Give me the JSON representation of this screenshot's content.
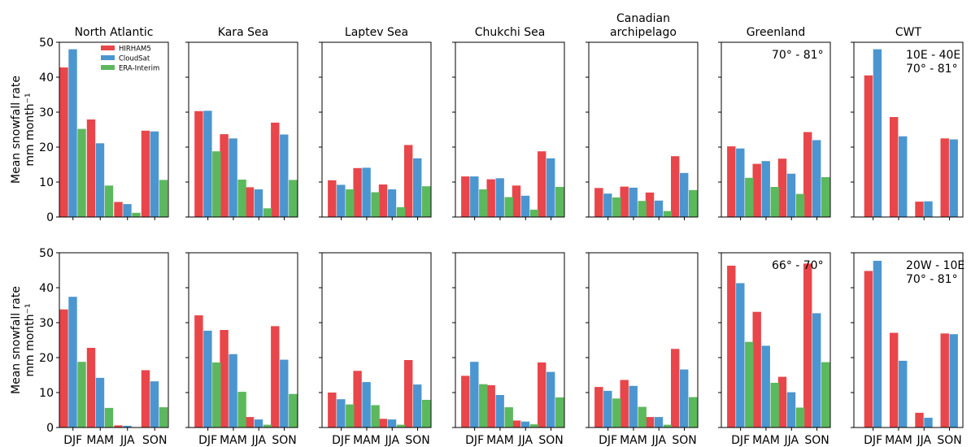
{
  "colors": {
    "HIRHAM5": "#e8464a",
    "CloudSat": "#4b96d0",
    "ERA-Interim": "#5cb85c"
  },
  "ylabel_lines": [
    "Mean snowfall rate",
    "mm month⁻¹"
  ],
  "chart_data": {
    "type": "bar",
    "categories": [
      "DJF",
      "MAM",
      "JJA",
      "SON"
    ],
    "ylim": [
      0,
      50
    ],
    "yticks": [
      0,
      10,
      20,
      30,
      40,
      50
    ],
    "legend": {
      "placement": "top-right of first panel",
      "entries": [
        "HIRHAM5",
        "CloudSat",
        "ERA-Interim"
      ]
    },
    "rows": [
      {
        "panels": [
          {
            "title": [
              "North Atlantic"
            ],
            "annotation": [],
            "series": [
              {
                "name": "HIRHAM5",
                "values": [
                  42.8,
                  27.9,
                  4.3,
                  24.7
                ]
              },
              {
                "name": "CloudSat",
                "values": [
                  48.0,
                  21.1,
                  3.7,
                  24.5
                ]
              },
              {
                "name": "ERA-Interim",
                "values": [
                  25.2,
                  9.0,
                  1.2,
                  10.6
                ]
              }
            ]
          },
          {
            "title": [
              "Kara Sea"
            ],
            "annotation": [],
            "series": [
              {
                "name": "HIRHAM5",
                "values": [
                  30.3,
                  23.7,
                  8.5,
                  27.0
                ]
              },
              {
                "name": "CloudSat",
                "values": [
                  30.4,
                  22.5,
                  7.9,
                  23.6
                ]
              },
              {
                "name": "ERA-Interim",
                "values": [
                  18.8,
                  10.7,
                  2.5,
                  10.6
                ]
              }
            ]
          },
          {
            "title": [
              "Laptev Sea"
            ],
            "annotation": [],
            "series": [
              {
                "name": "HIRHAM5",
                "values": [
                  10.5,
                  14.0,
                  9.3,
                  20.6
                ]
              },
              {
                "name": "CloudSat",
                "values": [
                  9.2,
                  14.1,
                  7.9,
                  16.8
                ]
              },
              {
                "name": "ERA-Interim",
                "values": [
                  7.9,
                  7.1,
                  2.8,
                  8.8
                ]
              }
            ]
          },
          {
            "title": [
              "Chukchi Sea"
            ],
            "annotation": [],
            "series": [
              {
                "name": "HIRHAM5",
                "values": [
                  11.6,
                  10.8,
                  9.0,
                  18.8
                ]
              },
              {
                "name": "CloudSat",
                "values": [
                  11.6,
                  11.1,
                  6.1,
                  16.8
                ]
              },
              {
                "name": "ERA-Interim",
                "values": [
                  7.9,
                  5.7,
                  2.1,
                  8.6
                ]
              }
            ]
          },
          {
            "title": [
              "Canadian",
              "archipelago"
            ],
            "annotation": [],
            "series": [
              {
                "name": "HIRHAM5",
                "values": [
                  8.3,
                  8.7,
                  7.0,
                  17.4
                ]
              },
              {
                "name": "CloudSat",
                "values": [
                  6.7,
                  8.4,
                  4.7,
                  12.6
                ]
              },
              {
                "name": "ERA-Interim",
                "values": [
                  5.6,
                  4.6,
                  1.7,
                  7.7
                ]
              }
            ]
          },
          {
            "title": [
              "Greenland"
            ],
            "annotation": [
              "70° - 81°"
            ],
            "series": [
              {
                "name": "HIRHAM5",
                "values": [
                  20.2,
                  15.2,
                  16.7,
                  24.3
                ]
              },
              {
                "name": "CloudSat",
                "values": [
                  19.6,
                  16.0,
                  12.4,
                  22.0
                ]
              },
              {
                "name": "ERA-Interim",
                "values": [
                  11.2,
                  8.6,
                  6.6,
                  11.4
                ]
              }
            ]
          },
          {
            "title": [
              "CWT"
            ],
            "annotation": [
              "10E - 40E",
              "70° - 81°"
            ],
            "series": [
              {
                "name": "HIRHAM5",
                "values": [
                  40.5,
                  28.6,
                  4.4,
                  22.5
                ]
              },
              {
                "name": "CloudSat",
                "values": [
                  48.0,
                  23.1,
                  4.5,
                  22.2
                ]
              }
            ]
          }
        ]
      },
      {
        "panels": [
          {
            "title": [],
            "annotation": [],
            "series": [
              {
                "name": "HIRHAM5",
                "values": [
                  33.8,
                  22.8,
                  0.6,
                  16.4
                ]
              },
              {
                "name": "CloudSat",
                "values": [
                  37.4,
                  14.2,
                  0.5,
                  13.2
                ]
              },
              {
                "name": "ERA-Interim",
                "values": [
                  18.8,
                  5.6,
                  0.0,
                  5.8
                ]
              }
            ]
          },
          {
            "title": [],
            "annotation": [],
            "series": [
              {
                "name": "HIRHAM5",
                "values": [
                  32.1,
                  27.9,
                  3.0,
                  29.0
                ]
              },
              {
                "name": "CloudSat",
                "values": [
                  27.7,
                  21.0,
                  2.3,
                  19.4
                ]
              },
              {
                "name": "ERA-Interim",
                "values": [
                  18.6,
                  10.2,
                  0.8,
                  9.6
                ]
              }
            ]
          },
          {
            "title": [],
            "annotation": [],
            "series": [
              {
                "name": "HIRHAM5",
                "values": [
                  10.0,
                  16.2,
                  2.5,
                  19.3
                ]
              },
              {
                "name": "CloudSat",
                "values": [
                  8.1,
                  13.0,
                  2.3,
                  12.3
                ]
              },
              {
                "name": "ERA-Interim",
                "values": [
                  6.6,
                  6.4,
                  0.8,
                  7.9
                ]
              }
            ]
          },
          {
            "title": [],
            "annotation": [],
            "series": [
              {
                "name": "HIRHAM5",
                "values": [
                  14.8,
                  12.1,
                  2.0,
                  18.6
                ]
              },
              {
                "name": "CloudSat",
                "values": [
                  18.8,
                  9.3,
                  1.7,
                  15.9
                ]
              },
              {
                "name": "ERA-Interim",
                "values": [
                  12.4,
                  5.8,
                  0.9,
                  8.6
                ]
              }
            ]
          },
          {
            "title": [],
            "annotation": [],
            "series": [
              {
                "name": "HIRHAM5",
                "values": [
                  11.6,
                  13.6,
                  3.0,
                  22.5
                ]
              },
              {
                "name": "CloudSat",
                "values": [
                  10.5,
                  11.9,
                  3.0,
                  16.6
                ]
              },
              {
                "name": "ERA-Interim",
                "values": [
                  8.3,
                  5.9,
                  0.8,
                  8.7
                ]
              }
            ]
          },
          {
            "title": [],
            "annotation": [
              "66° - 70°"
            ],
            "series": [
              {
                "name": "HIRHAM5",
                "values": [
                  46.3,
                  33.1,
                  14.5,
                  46.9
                ]
              },
              {
                "name": "CloudSat",
                "values": [
                  41.3,
                  23.4,
                  10.1,
                  32.7
                ]
              },
              {
                "name": "ERA-Interim",
                "values": [
                  24.5,
                  12.8,
                  5.7,
                  18.7
                ]
              }
            ]
          },
          {
            "title": [],
            "annotation": [
              "20W - 10E",
              "70° - 81°"
            ],
            "series": [
              {
                "name": "HIRHAM5",
                "values": [
                  44.8,
                  27.1,
                  4.2,
                  26.9
                ]
              },
              {
                "name": "CloudSat",
                "values": [
                  47.7,
                  19.1,
                  2.8,
                  26.7
                ]
              }
            ]
          }
        ]
      }
    ]
  }
}
